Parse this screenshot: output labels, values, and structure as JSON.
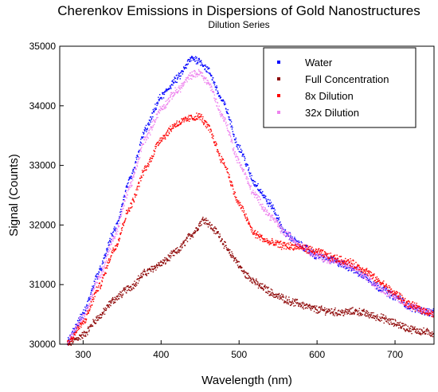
{
  "chart_data": {
    "type": "scatter",
    "title": "Cherenkov Emissions in Dispersions of Gold Nanostructures",
    "subtitle": "Dilution Series",
    "xlabel": "Wavelength (nm)",
    "ylabel": "Signal (Counts)",
    "xlim": [
      270,
      750
    ],
    "ylim": [
      30000,
      35000
    ],
    "xticks": [
      300,
      400,
      500,
      600,
      700
    ],
    "yticks": [
      30000,
      31000,
      32000,
      33000,
      34000,
      35000
    ],
    "xtick_labels": [
      "300",
      "400",
      "500",
      "600",
      "700"
    ],
    "ytick_labels": [
      "30000",
      "31000",
      "32000",
      "33000",
      "34000",
      "35000"
    ],
    "legend_position": "top-right",
    "series": [
      {
        "name": "Water",
        "color": "#0000ff",
        "x": [
          280,
          300,
          320,
          340,
          360,
          380,
          400,
          420,
          440,
          450,
          460,
          480,
          500,
          520,
          540,
          560,
          580,
          600,
          620,
          640,
          660,
          680,
          700,
          720,
          740,
          750
        ],
        "y": [
          30050,
          30500,
          31200,
          31900,
          32750,
          33600,
          34150,
          34450,
          34800,
          34750,
          34600,
          34050,
          33300,
          32700,
          32350,
          31850,
          31650,
          31480,
          31400,
          31300,
          31150,
          30950,
          30800,
          30620,
          30550,
          30520
        ]
      },
      {
        "name": "Full Concentration",
        "color": "#8b0000",
        "x": [
          280,
          300,
          320,
          340,
          360,
          380,
          400,
          420,
          440,
          455,
          470,
          490,
          510,
          530,
          550,
          570,
          600,
          630,
          650,
          680,
          700,
          720,
          740,
          750
        ],
        "y": [
          30000,
          30150,
          30450,
          30750,
          30950,
          31200,
          31350,
          31550,
          31850,
          32100,
          31900,
          31500,
          31150,
          30950,
          30800,
          30700,
          30580,
          30530,
          30550,
          30450,
          30350,
          30250,
          30200,
          30180
        ]
      },
      {
        "name": "8x Dilution",
        "color": "#ff0000",
        "x": [
          280,
          300,
          320,
          340,
          360,
          380,
          400,
          420,
          440,
          450,
          460,
          480,
          500,
          520,
          540,
          560,
          580,
          600,
          620,
          640,
          660,
          680,
          700,
          720,
          740,
          750
        ],
        "y": [
          30020,
          30350,
          30950,
          31600,
          32300,
          32950,
          33450,
          33700,
          33800,
          33820,
          33650,
          33050,
          32350,
          31850,
          31700,
          31650,
          31620,
          31550,
          31450,
          31380,
          31250,
          31050,
          30850,
          30650,
          30550,
          30500
        ]
      },
      {
        "name": "32x Dilution",
        "color": "#ee82ee",
        "x": [
          280,
          300,
          320,
          340,
          360,
          380,
          400,
          420,
          440,
          450,
          460,
          480,
          500,
          520,
          540,
          560,
          580,
          600,
          620,
          640,
          660,
          680,
          700,
          720,
          740,
          750
        ],
        "y": [
          30040,
          30450,
          31100,
          31800,
          32650,
          33450,
          33950,
          34250,
          34520,
          34550,
          34400,
          33800,
          33050,
          32500,
          32150,
          31850,
          31650,
          31480,
          31400,
          31320,
          31150,
          30950,
          30800,
          30620,
          30550,
          30520
        ]
      }
    ]
  }
}
